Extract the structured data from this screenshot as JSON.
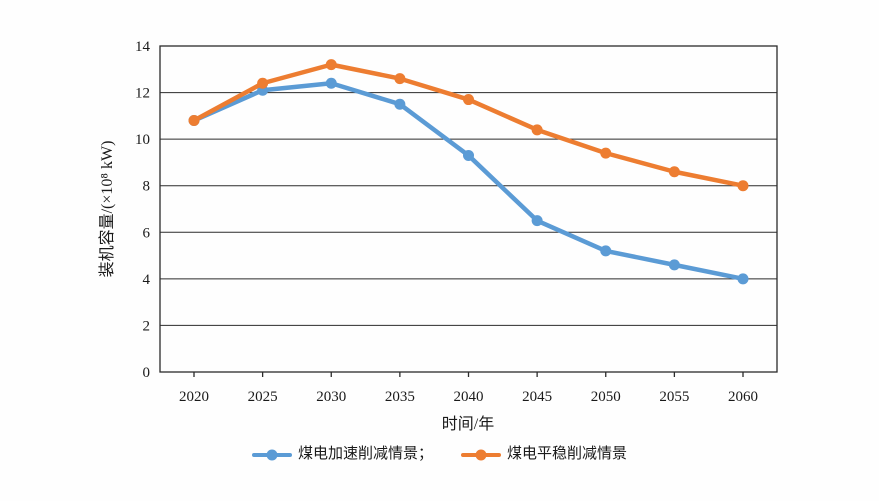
{
  "chart_data": {
    "type": "line",
    "title": "",
    "xlabel": "时间/年",
    "ylabel": "装机容量/(×10⁸ kW)",
    "x": [
      2020,
      2025,
      2030,
      2035,
      2040,
      2045,
      2050,
      2055,
      2060
    ],
    "series": [
      {
        "name": "煤电加速削减情景",
        "legend_label": "煤电加速削减情景；",
        "color": "#5B9BD5",
        "values": [
          10.8,
          12.1,
          12.4,
          11.5,
          9.3,
          6.5,
          5.2,
          4.6,
          4.0
        ]
      },
      {
        "name": "煤电平稳削减情景",
        "legend_label": "煤电平稳削减情景",
        "color": "#ED7D31",
        "values": [
          10.8,
          12.4,
          13.2,
          12.6,
          11.7,
          10.4,
          9.4,
          8.6,
          8.0
        ]
      }
    ],
    "ylim": [
      0,
      14
    ],
    "ytick_step": 2,
    "grid": "horizontal",
    "legend_position": "bottom",
    "axis_color": "#2b2b2b"
  }
}
